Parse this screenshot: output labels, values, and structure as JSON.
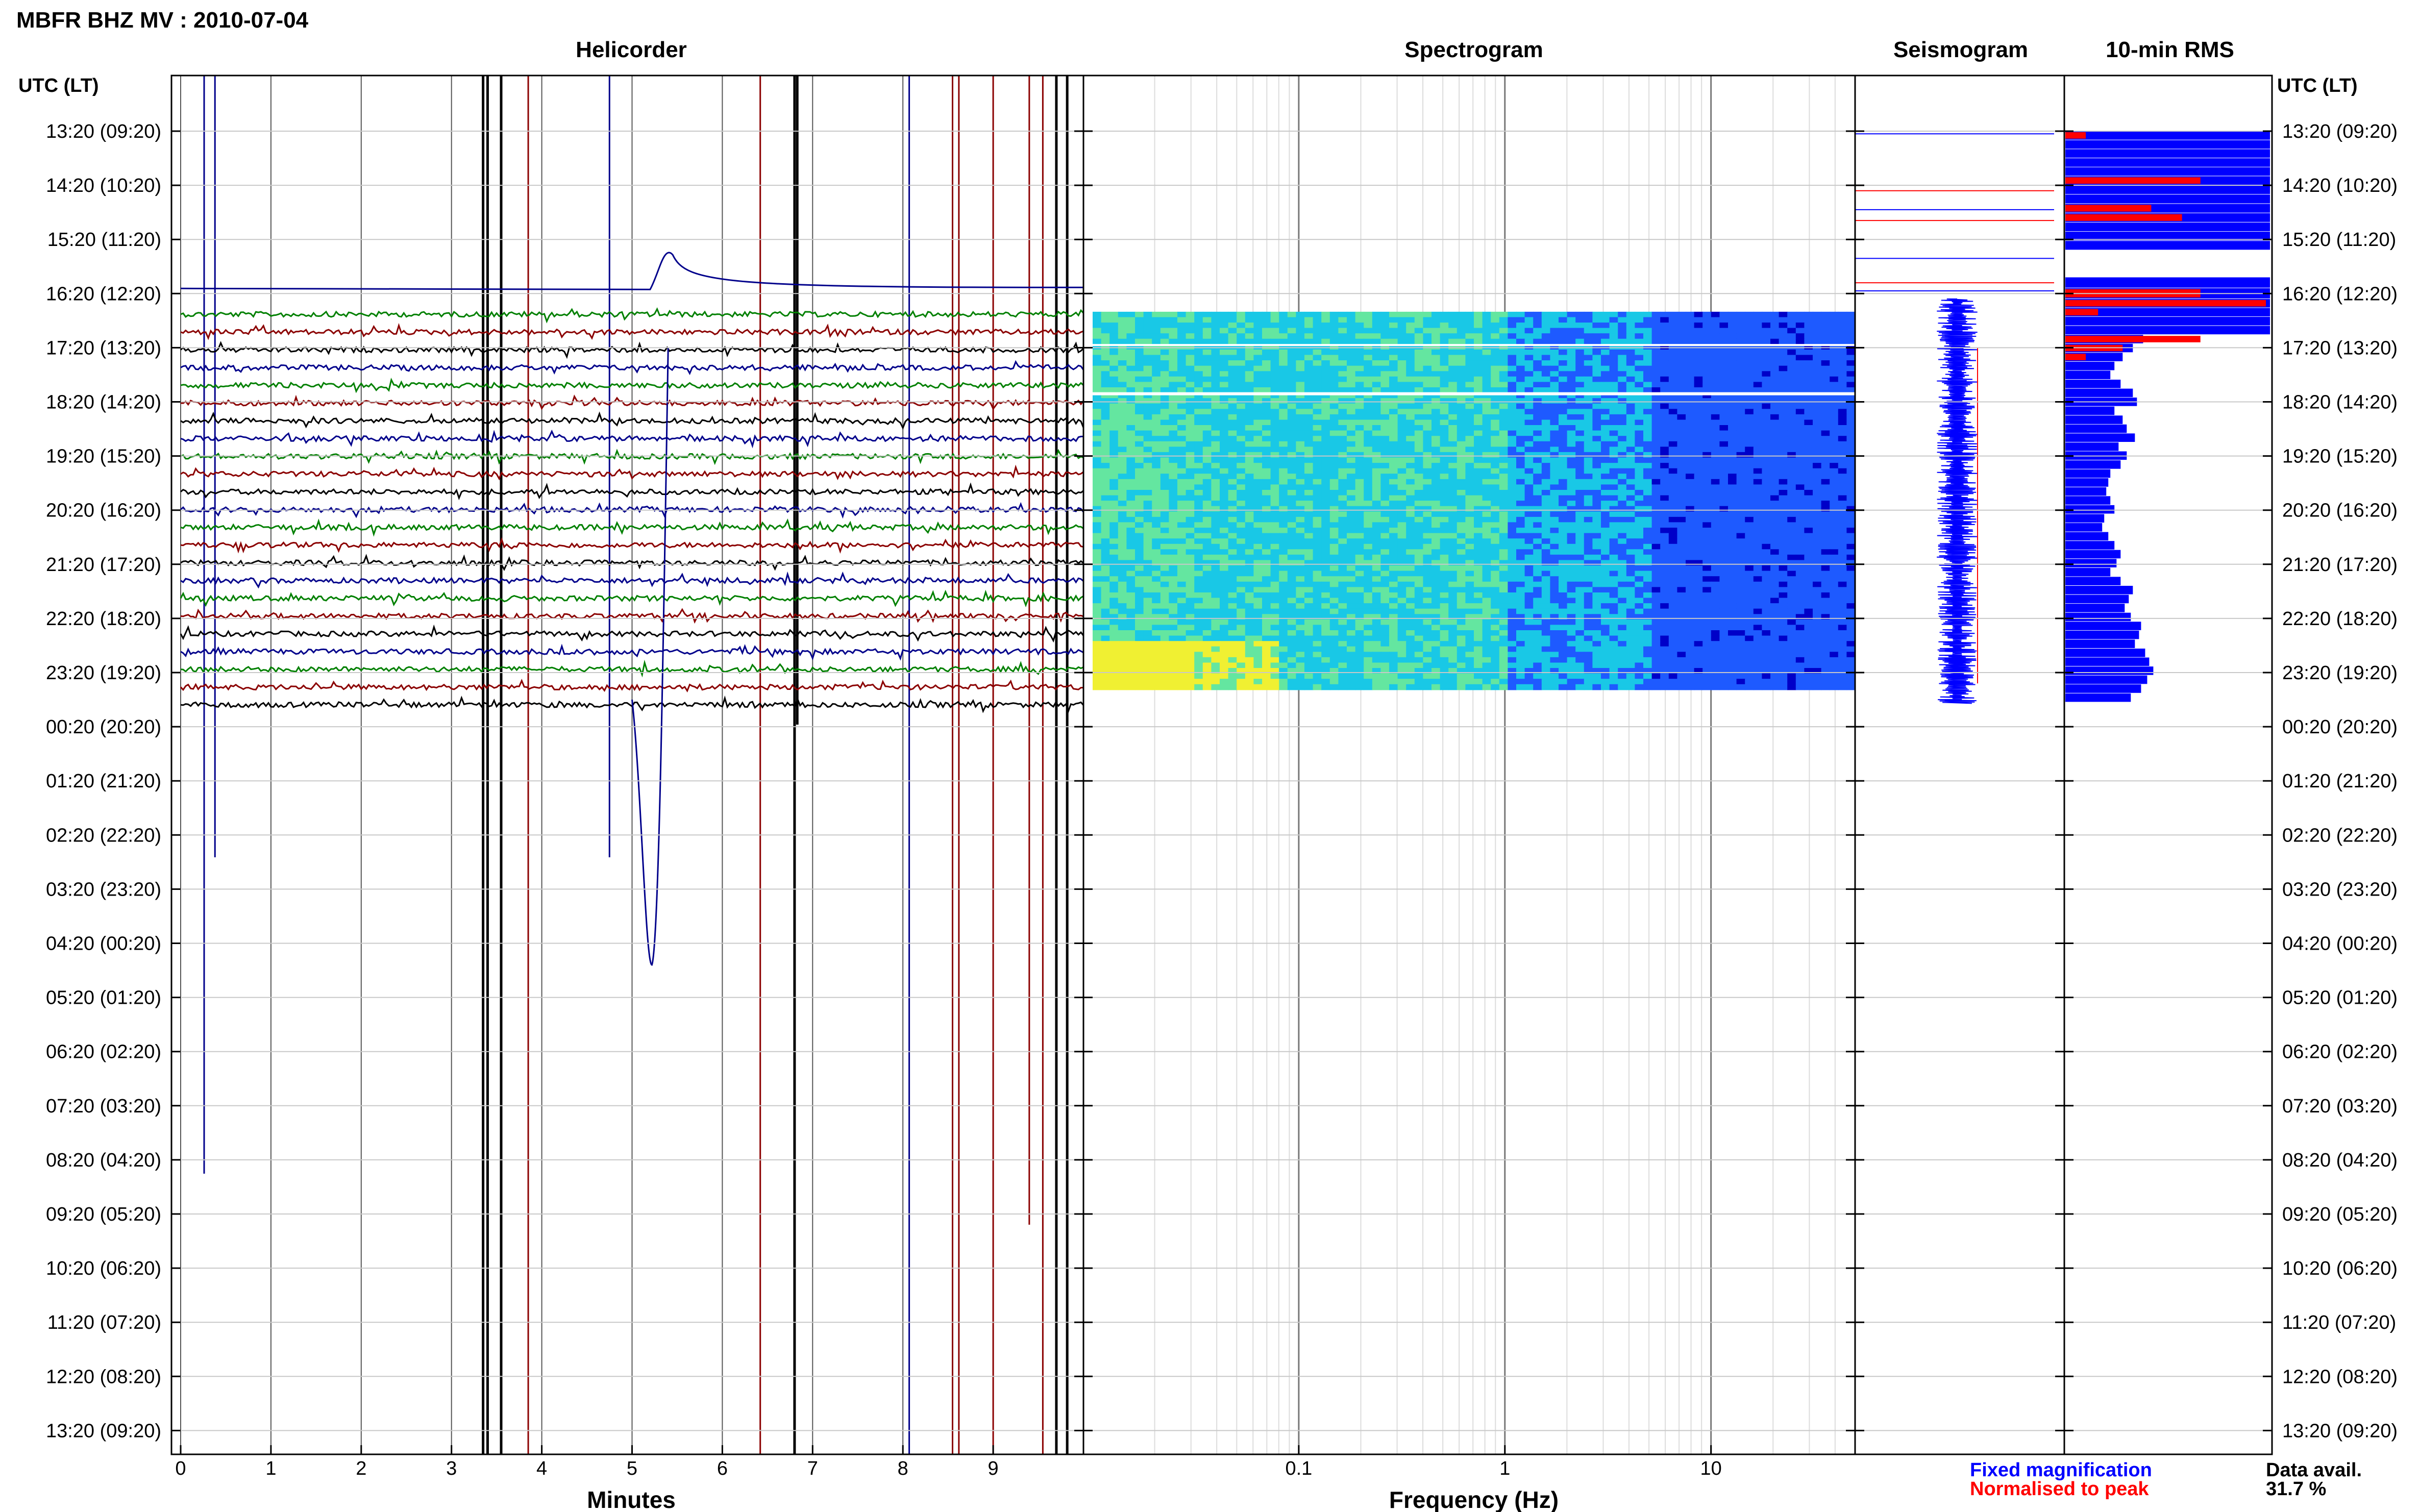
{
  "header": {
    "title": "MBFR BHZ MV : 2010-07-04",
    "time_axis_label": "UTC (LT)"
  },
  "panels": {
    "helicorder": "Helicorder",
    "spectrogram": "Spectrogram",
    "seismogram": "Seismogram",
    "rms": "10-min RMS"
  },
  "legend": {
    "fixed": "Fixed magnification",
    "normalised": "Normalised to peak",
    "fixed_color": "#0000ff",
    "normalised_color": "#ff0000"
  },
  "availability": {
    "label": "Data avail.",
    "value": "31.7 %"
  },
  "chart_data": [
    {
      "type": "line",
      "panel": "helicorder",
      "xlabel": "Minutes",
      "x_ticks": [
        "0",
        "1",
        "2",
        "3",
        "4",
        "5",
        "6",
        "7",
        "8",
        "9"
      ],
      "xlim": [
        0,
        10
      ],
      "row_labels": [
        "13:20 (09:20)",
        "14:20 (10:20)",
        "15:20 (11:20)",
        "16:20 (12:20)",
        "17:20 (13:20)",
        "18:20 (14:20)",
        "19:20 (15:20)",
        "20:20 (16:20)",
        "21:20 (17:20)",
        "22:20 (18:20)",
        "23:20 (19:20)",
        "00:20 (20:20)",
        "01:20 (21:20)",
        "02:20 (22:20)",
        "03:20 (23:20)",
        "04:20 (00:20)",
        "05:20 (01:20)",
        "06:20 (02:20)",
        "07:20 (03:20)",
        "08:20 (04:20)",
        "09:20 (05:20)",
        "10:20 (06:20)",
        "11:20 (07:20)",
        "12:20 (08:20)",
        "13:20 (09:20)"
      ],
      "trace_colors": [
        "#008000",
        "#8b0000",
        "#000000",
        "#00008b"
      ],
      "data_start_row": 3.1,
      "data_end_row": 10.55
    },
    {
      "type": "heatmap",
      "panel": "spectrogram",
      "xlabel": "Frequency (Hz)",
      "x_scale": "log",
      "xlim": [
        0.01,
        50
      ],
      "x_ticks": [
        "0.1",
        "1",
        "10"
      ],
      "colormap": [
        "#0000c8",
        "#1e5aff",
        "#19c8e6",
        "#64e6a0",
        "#f0f032"
      ]
    },
    {
      "type": "line",
      "panel": "seismogram",
      "series": [
        {
          "name": "Fixed magnification"
        },
        {
          "name": "Normalised to peak"
        }
      ]
    },
    {
      "type": "bar",
      "panel": "rms",
      "series": [
        {
          "name": "Fixed magnification",
          "values": [
            1.0,
            1.0,
            1.0,
            1.0,
            1.0,
            1.0,
            1.0,
            1.0,
            1.0,
            1.0,
            1.0,
            1.0,
            1.0,
            1.0,
            1.0,
            1.0,
            1.0,
            1.0,
            1.0,
            0.38,
            0.33,
            0.28,
            0.24,
            0.22,
            0.27,
            0.33,
            0.35,
            0.24,
            0.28,
            0.3,
            0.34,
            0.26,
            0.3,
            0.27,
            0.22,
            0.21,
            0.2,
            0.22,
            0.24,
            0.19,
            0.18,
            0.21,
            0.24,
            0.27,
            0.25,
            0.22,
            0.27,
            0.33,
            0.31,
            0.29,
            0.32,
            0.37,
            0.36,
            0.34,
            0.39,
            0.41,
            0.43,
            0.4,
            0.37,
            0.32,
            0.3
          ],
          "shown_rows": [
            [
              0.0,
              1.0
            ],
            [
              1.0,
              2.2
            ],
            [
              2.7,
              3.1
            ],
            [
              3.1,
              10.55
            ]
          ]
        },
        {
          "name": "Normalised to peak",
          "values": [
            0.1,
            0.0,
            0.0,
            0.0,
            0.0,
            0.66,
            0.0,
            0.0,
            0.42,
            0.57,
            0.0,
            0.0,
            0.0,
            0.0,
            0.66,
            0.98,
            0.16,
            0.0,
            0.0,
            0.66,
            0.28,
            0.1
          ]
        }
      ]
    }
  ]
}
